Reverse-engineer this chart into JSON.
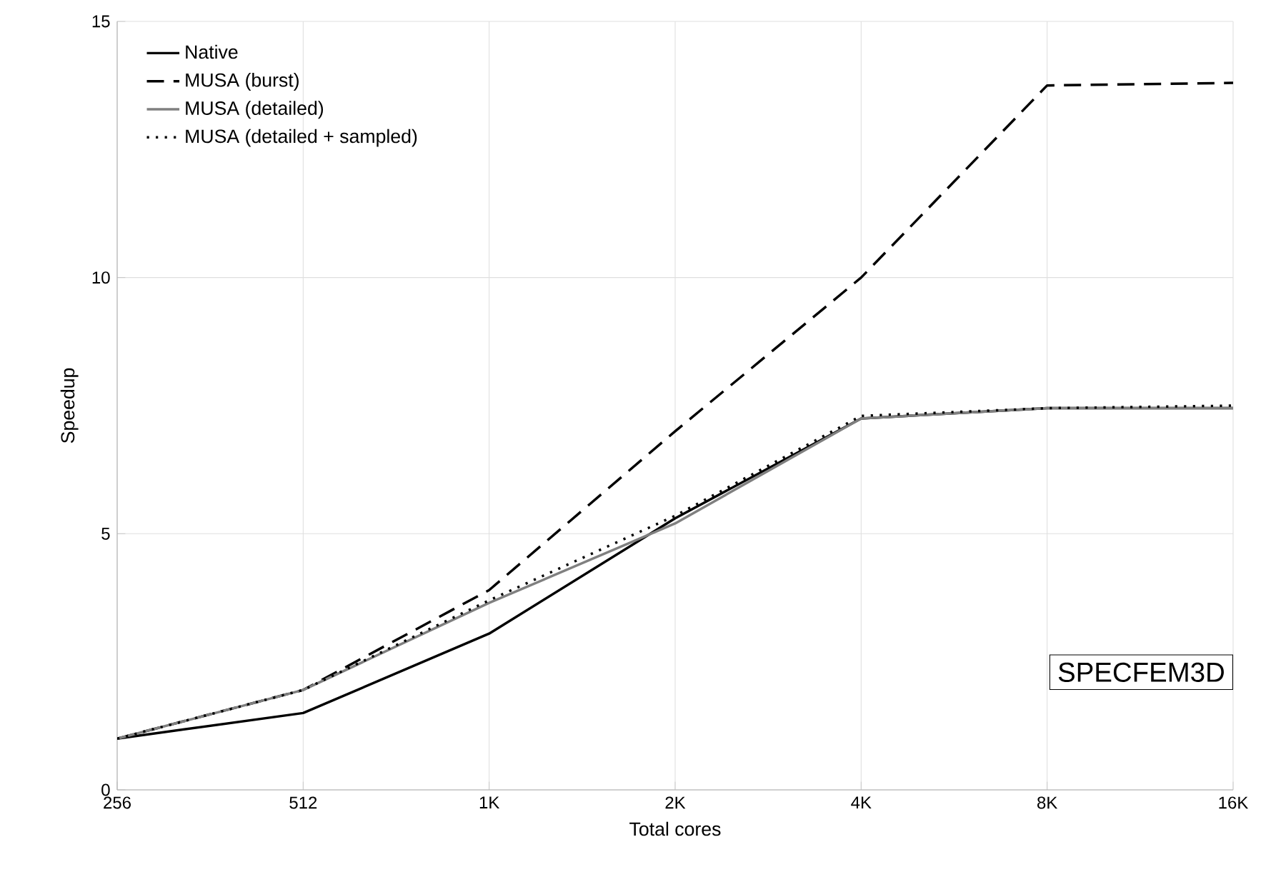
{
  "chart_data": {
    "type": "line",
    "xlabel": "Total cores",
    "ylabel": "Speedup",
    "categories": [
      "256",
      "512",
      "1K",
      "2K",
      "4K",
      "8K",
      "16K"
    ],
    "series": [
      {
        "name": "Native",
        "color": "#000000",
        "line_style": "solid",
        "values": [
          1.0,
          1.5,
          3.05,
          5.3,
          7.25,
          7.45,
          7.45
        ]
      },
      {
        "name": "MUSA (burst)",
        "color": "#000000",
        "line_style": "dashed",
        "values": [
          1.0,
          1.95,
          3.9,
          7.0,
          10.0,
          13.75,
          13.8
        ]
      },
      {
        "name": "MUSA (detailed)",
        "color": "#808080",
        "line_style": "solid",
        "values": [
          1.0,
          1.95,
          3.65,
          5.2,
          7.25,
          7.45,
          7.45
        ]
      },
      {
        "name": "MUSA (detailed + sampled)",
        "color": "#000000",
        "line_style": "dotted",
        "values": [
          1.0,
          1.95,
          3.7,
          5.35,
          7.3,
          7.45,
          7.5
        ]
      }
    ],
    "ylim": [
      0,
      15
    ],
    "yticks": [
      0,
      5,
      10,
      15
    ],
    "grid": true,
    "legend": "top left",
    "marker": "none",
    "annotations": [
      "SPECFEM3D"
    ]
  }
}
